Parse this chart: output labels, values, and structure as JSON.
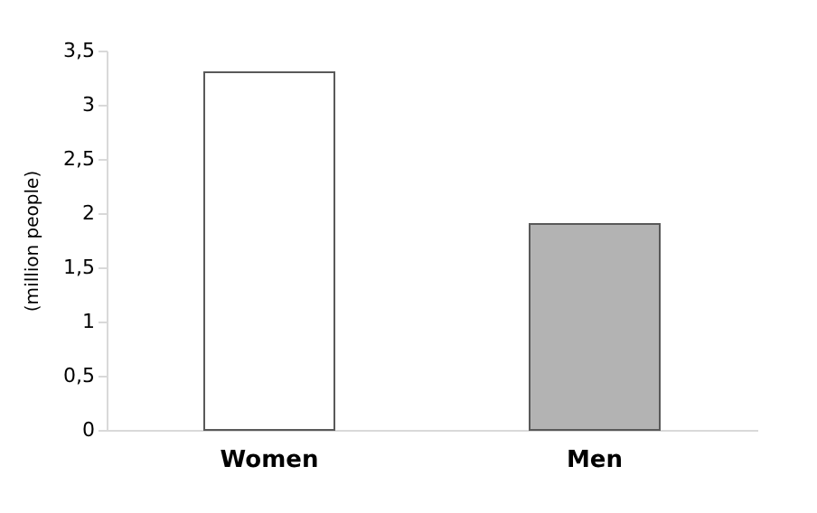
{
  "chart_data": {
    "type": "bar",
    "ylabel": "(million people)",
    "categories": [
      "Women",
      "Men"
    ],
    "values": [
      3.3,
      1.9
    ],
    "colors": [
      "#ffffff",
      "#b3b3b3"
    ],
    "ylim": [
      0,
      3.5
    ],
    "yticks": [
      0,
      {
        "value": 0.5,
        "label": "0,5"
      },
      1,
      {
        "value": 1.5,
        "label": "1,5"
      },
      2,
      {
        "value": 2.5,
        "label": "2,5"
      },
      3,
      {
        "value": 3.5,
        "label": "3,5"
      }
    ],
    "grid": false
  }
}
